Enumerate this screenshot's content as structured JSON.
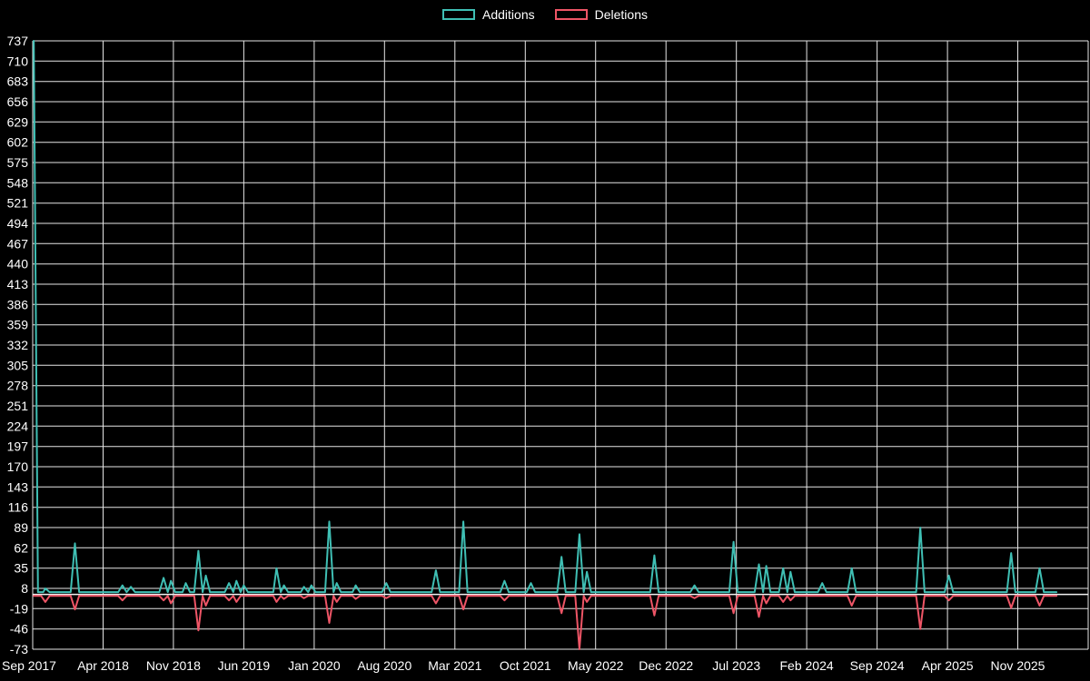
{
  "legend": {
    "position": "top-center"
  },
  "chart_data": {
    "type": "line",
    "title": "",
    "xlabel": "",
    "ylabel": "",
    "background": "#000000",
    "grid": true,
    "grid_color": "#e6e6e6",
    "text_color": "#ffffff",
    "ylim": [
      -73,
      737
    ],
    "yticks": [
      737,
      710,
      683,
      656,
      629,
      602,
      575,
      548,
      521,
      494,
      467,
      440,
      413,
      386,
      359,
      332,
      305,
      278,
      251,
      224,
      197,
      170,
      143,
      116,
      89,
      62,
      35,
      8,
      -19,
      -46,
      -73
    ],
    "xlabels": [
      "Sep 2017",
      "Apr 2018",
      "Nov 2018",
      "Jun 2019",
      "Jan 2020",
      "Aug 2020",
      "Mar 2021",
      "Oct 2021",
      "May 2022",
      "Dec 2022",
      "Jul 2023",
      "Feb 2024",
      "Sep 2024",
      "Apr 2025",
      "Nov 2025"
    ],
    "x_axis_type": "time-fraction",
    "series": [
      {
        "name": "Additions",
        "color": "#3fbfb4",
        "points": [
          [
            0.001,
            737
          ],
          [
            0.005,
            3
          ],
          [
            0.01,
            3
          ],
          [
            0.012,
            8
          ],
          [
            0.016,
            3
          ],
          [
            0.036,
            3
          ],
          [
            0.04,
            68
          ],
          [
            0.044,
            3
          ],
          [
            0.081,
            3
          ],
          [
            0.085,
            12
          ],
          [
            0.089,
            3
          ],
          [
            0.093,
            10
          ],
          [
            0.097,
            3
          ],
          [
            0.12,
            3
          ],
          [
            0.124,
            22
          ],
          [
            0.128,
            3
          ],
          [
            0.131,
            18
          ],
          [
            0.135,
            3
          ],
          [
            0.142,
            3
          ],
          [
            0.145,
            15
          ],
          [
            0.149,
            3
          ],
          [
            0.153,
            3
          ],
          [
            0.157,
            58
          ],
          [
            0.161,
            3
          ],
          [
            0.164,
            25
          ],
          [
            0.168,
            3
          ],
          [
            0.182,
            3
          ],
          [
            0.186,
            15
          ],
          [
            0.19,
            3
          ],
          [
            0.193,
            18
          ],
          [
            0.197,
            3
          ],
          [
            0.2,
            12
          ],
          [
            0.204,
            3
          ],
          [
            0.228,
            3
          ],
          [
            0.231,
            35
          ],
          [
            0.235,
            3
          ],
          [
            0.238,
            12
          ],
          [
            0.242,
            3
          ],
          [
            0.254,
            3
          ],
          [
            0.257,
            10
          ],
          [
            0.261,
            3
          ],
          [
            0.264,
            12
          ],
          [
            0.268,
            3
          ],
          [
            0.277,
            3
          ],
          [
            0.281,
            97
          ],
          [
            0.285,
            3
          ],
          [
            0.288,
            15
          ],
          [
            0.292,
            3
          ],
          [
            0.303,
            3
          ],
          [
            0.306,
            12
          ],
          [
            0.31,
            3
          ],
          [
            0.331,
            3
          ],
          [
            0.335,
            15
          ],
          [
            0.339,
            3
          ],
          [
            0.378,
            3
          ],
          [
            0.382,
            32
          ],
          [
            0.386,
            3
          ],
          [
            0.404,
            3
          ],
          [
            0.408,
            97
          ],
          [
            0.412,
            3
          ],
          [
            0.443,
            3
          ],
          [
            0.447,
            18
          ],
          [
            0.451,
            3
          ],
          [
            0.468,
            3
          ],
          [
            0.472,
            15
          ],
          [
            0.476,
            3
          ],
          [
            0.497,
            3
          ],
          [
            0.501,
            50
          ],
          [
            0.505,
            3
          ],
          [
            0.514,
            3
          ],
          [
            0.518,
            80
          ],
          [
            0.522,
            3
          ],
          [
            0.525,
            30
          ],
          [
            0.529,
            3
          ],
          [
            0.585,
            3
          ],
          [
            0.589,
            52
          ],
          [
            0.593,
            3
          ],
          [
            0.623,
            3
          ],
          [
            0.627,
            12
          ],
          [
            0.631,
            3
          ],
          [
            0.66,
            3
          ],
          [
            0.664,
            70
          ],
          [
            0.668,
            3
          ],
          [
            0.684,
            3
          ],
          [
            0.688,
            40
          ],
          [
            0.692,
            3
          ],
          [
            0.695,
            38
          ],
          [
            0.699,
            3
          ],
          [
            0.707,
            3
          ],
          [
            0.711,
            35
          ],
          [
            0.715,
            3
          ],
          [
            0.718,
            30
          ],
          [
            0.722,
            3
          ],
          [
            0.744,
            3
          ],
          [
            0.748,
            15
          ],
          [
            0.752,
            3
          ],
          [
            0.772,
            3
          ],
          [
            0.776,
            35
          ],
          [
            0.78,
            3
          ],
          [
            0.837,
            3
          ],
          [
            0.841,
            89
          ],
          [
            0.845,
            3
          ],
          [
            0.864,
            3
          ],
          [
            0.868,
            25
          ],
          [
            0.872,
            3
          ],
          [
            0.923,
            3
          ],
          [
            0.927,
            55
          ],
          [
            0.931,
            3
          ],
          [
            0.95,
            3
          ],
          [
            0.954,
            35
          ],
          [
            0.958,
            3
          ],
          [
            0.97,
            3
          ]
        ]
      },
      {
        "name": "Deletions",
        "color": "#ee5566",
        "points": [
          [
            0.001,
            -2
          ],
          [
            0.008,
            -2
          ],
          [
            0.012,
            -10
          ],
          [
            0.016,
            -2
          ],
          [
            0.036,
            -2
          ],
          [
            0.04,
            -20
          ],
          [
            0.044,
            -2
          ],
          [
            0.081,
            -2
          ],
          [
            0.085,
            -8
          ],
          [
            0.089,
            -2
          ],
          [
            0.12,
            -2
          ],
          [
            0.124,
            -8
          ],
          [
            0.128,
            -2
          ],
          [
            0.131,
            -12
          ],
          [
            0.135,
            -2
          ],
          [
            0.153,
            -2
          ],
          [
            0.157,
            -48
          ],
          [
            0.161,
            -2
          ],
          [
            0.164,
            -15
          ],
          [
            0.168,
            -2
          ],
          [
            0.182,
            -2
          ],
          [
            0.186,
            -8
          ],
          [
            0.19,
            -2
          ],
          [
            0.193,
            -10
          ],
          [
            0.197,
            -2
          ],
          [
            0.228,
            -2
          ],
          [
            0.231,
            -10
          ],
          [
            0.235,
            -2
          ],
          [
            0.238,
            -6
          ],
          [
            0.242,
            -2
          ],
          [
            0.254,
            -2
          ],
          [
            0.257,
            -5
          ],
          [
            0.261,
            -2
          ],
          [
            0.277,
            -2
          ],
          [
            0.281,
            -38
          ],
          [
            0.285,
            -2
          ],
          [
            0.288,
            -10
          ],
          [
            0.292,
            -2
          ],
          [
            0.303,
            -2
          ],
          [
            0.306,
            -6
          ],
          [
            0.31,
            -2
          ],
          [
            0.331,
            -2
          ],
          [
            0.335,
            -5
          ],
          [
            0.339,
            -2
          ],
          [
            0.378,
            -2
          ],
          [
            0.382,
            -12
          ],
          [
            0.386,
            -2
          ],
          [
            0.404,
            -2
          ],
          [
            0.408,
            -20
          ],
          [
            0.412,
            -2
          ],
          [
            0.443,
            -2
          ],
          [
            0.447,
            -8
          ],
          [
            0.451,
            -2
          ],
          [
            0.497,
            -2
          ],
          [
            0.501,
            -25
          ],
          [
            0.505,
            -2
          ],
          [
            0.514,
            -2
          ],
          [
            0.518,
            -73
          ],
          [
            0.522,
            -2
          ],
          [
            0.525,
            -10
          ],
          [
            0.529,
            -2
          ],
          [
            0.585,
            -2
          ],
          [
            0.589,
            -28
          ],
          [
            0.593,
            -2
          ],
          [
            0.623,
            -2
          ],
          [
            0.627,
            -5
          ],
          [
            0.631,
            -2
          ],
          [
            0.66,
            -2
          ],
          [
            0.664,
            -25
          ],
          [
            0.668,
            -2
          ],
          [
            0.684,
            -2
          ],
          [
            0.688,
            -30
          ],
          [
            0.692,
            -2
          ],
          [
            0.695,
            -12
          ],
          [
            0.699,
            -2
          ],
          [
            0.707,
            -2
          ],
          [
            0.711,
            -10
          ],
          [
            0.715,
            -2
          ],
          [
            0.718,
            -8
          ],
          [
            0.722,
            -2
          ],
          [
            0.772,
            -2
          ],
          [
            0.776,
            -15
          ],
          [
            0.78,
            -2
          ],
          [
            0.837,
            -2
          ],
          [
            0.841,
            -46
          ],
          [
            0.845,
            -2
          ],
          [
            0.864,
            -2
          ],
          [
            0.868,
            -8
          ],
          [
            0.872,
            -2
          ],
          [
            0.923,
            -2
          ],
          [
            0.927,
            -18
          ],
          [
            0.931,
            -2
          ],
          [
            0.95,
            -2
          ],
          [
            0.954,
            -15
          ],
          [
            0.958,
            -2
          ],
          [
            0.97,
            -2
          ]
        ]
      }
    ],
    "legend_entries": [
      "Additions",
      "Deletions"
    ]
  }
}
